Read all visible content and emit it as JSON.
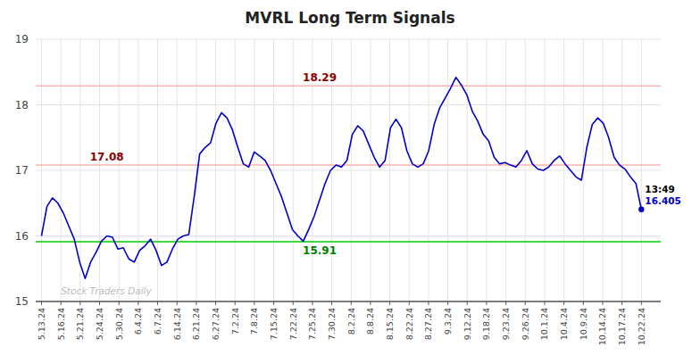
{
  "chart_data": {
    "type": "line",
    "title": "MVRL Long Term Signals",
    "color": "#0000cc",
    "marker": "last",
    "grid": true,
    "xlim": [
      -0.3,
      32
    ],
    "ylim": [
      15,
      19
    ],
    "yticks": [
      15,
      16,
      17,
      18,
      19
    ],
    "xticks": [
      {
        "value": 0,
        "label": "5.13.24"
      },
      {
        "value": 1,
        "label": "5.16.24"
      },
      {
        "value": 2,
        "label": "5.21.24"
      },
      {
        "value": 3,
        "label": "5.24.24"
      },
      {
        "value": 4,
        "label": "5.30.24"
      },
      {
        "value": 5,
        "label": "6.4.24"
      },
      {
        "value": 6,
        "label": "6.7.24"
      },
      {
        "value": 7,
        "label": "6.14.24"
      },
      {
        "value": 8,
        "label": "6.21.24"
      },
      {
        "value": 9,
        "label": "6.27.24"
      },
      {
        "value": 10,
        "label": "7.2.24"
      },
      {
        "value": 11,
        "label": "7.8.24"
      },
      {
        "value": 12,
        "label": "7.15.24"
      },
      {
        "value": 13,
        "label": "7.22.24"
      },
      {
        "value": 14,
        "label": "7.25.24"
      },
      {
        "value": 15,
        "label": "7.30.24"
      },
      {
        "value": 16,
        "label": "8.2.24"
      },
      {
        "value": 17,
        "label": "8.8.24"
      },
      {
        "value": 18,
        "label": "8.15.24"
      },
      {
        "value": 19,
        "label": "8.22.24"
      },
      {
        "value": 20,
        "label": "8.27.24"
      },
      {
        "value": 21,
        "label": "9.3.24"
      },
      {
        "value": 22,
        "label": "9.12.24"
      },
      {
        "value": 23,
        "label": "9.18.24"
      },
      {
        "value": 24,
        "label": "9.23.24"
      },
      {
        "value": 25,
        "label": "9.26.24"
      },
      {
        "value": 26,
        "label": "10.1.24"
      },
      {
        "value": 27,
        "label": "10.4.24"
      },
      {
        "value": 28,
        "label": "10.9.24"
      },
      {
        "value": 29,
        "label": "10.14.24"
      },
      {
        "value": 30,
        "label": "10.17.24"
      },
      {
        "value": 31,
        "label": "10.22.24"
      }
    ],
    "x": [
      0,
      0.2818,
      0.5636,
      0.8455,
      1.1273,
      1.4091,
      1.6909,
      1.9727,
      2.2545,
      2.5364,
      2.8182,
      3.1,
      3.3818,
      3.6636,
      3.9455,
      4.2273,
      4.5091,
      4.7909,
      5.0727,
      5.3545,
      5.6364,
      5.9182,
      6.2,
      6.4818,
      6.7636,
      7.0455,
      7.3273,
      7.6091,
      7.8909,
      8.1727,
      8.4545,
      8.7364,
      9.0182,
      9.3,
      9.5818,
      9.8636,
      10.1455,
      10.4273,
      10.7091,
      10.9909,
      11.2727,
      11.5545,
      11.8364,
      12.1182,
      12.4,
      12.6818,
      12.9636,
      13.2455,
      13.5273,
      13.8091,
      14.0909,
      14.3727,
      14.6545,
      14.9364,
      15.2182,
      15.5,
      15.7818,
      16.0636,
      16.3455,
      16.6273,
      16.9091,
      17.1909,
      17.4727,
      17.7545,
      18.0364,
      18.3182,
      18.6,
      18.8818,
      19.1636,
      19.4455,
      19.7273,
      20.0091,
      20.2909,
      20.5727,
      20.8545,
      21.1364,
      21.4182,
      21.7,
      21.9818,
      22.2636,
      22.5455,
      22.8273,
      23.1091,
      23.3909,
      23.6727,
      23.9545,
      24.2364,
      24.5182,
      24.8,
      25.0818,
      25.3636,
      25.6455,
      25.9273,
      26.2091,
      26.4909,
      26.7727,
      27.0545,
      27.3364,
      27.6182,
      27.9,
      28.1818,
      28.4636,
      28.7455,
      29.0273,
      29.3091,
      29.5909,
      29.8727,
      30.1545,
      30.4364,
      30.7182,
      31
    ],
    "values": [
      16.0,
      16.45,
      16.58,
      16.5,
      16.35,
      16.15,
      15.95,
      15.6,
      15.35,
      15.6,
      15.75,
      15.92,
      16.0,
      15.98,
      15.8,
      15.82,
      15.65,
      15.6,
      15.78,
      15.85,
      15.95,
      15.78,
      15.55,
      15.6,
      15.8,
      15.95,
      16.0,
      16.02,
      16.6,
      17.25,
      17.35,
      17.42,
      17.72,
      17.88,
      17.8,
      17.62,
      17.35,
      17.1,
      17.05,
      17.28,
      17.22,
      17.15,
      17.0,
      16.8,
      16.6,
      16.35,
      16.1,
      16.0,
      15.92,
      16.1,
      16.3,
      16.55,
      16.8,
      17.0,
      17.08,
      17.05,
      17.15,
      17.55,
      17.68,
      17.6,
      17.4,
      17.2,
      17.05,
      17.15,
      17.65,
      17.78,
      17.65,
      17.3,
      17.1,
      17.05,
      17.1,
      17.3,
      17.7,
      17.95,
      18.1,
      18.25,
      18.42,
      18.3,
      18.15,
      17.9,
      17.75,
      17.55,
      17.45,
      17.2,
      17.1,
      17.12,
      17.08,
      17.05,
      17.15,
      17.3,
      17.1,
      17.02,
      17.0,
      17.05,
      17.15,
      17.22,
      17.1,
      17.0,
      16.9,
      16.85,
      17.35,
      17.7,
      17.8,
      17.72,
      17.5,
      17.2,
      17.08,
      17.02,
      16.9,
      16.8,
      16.405
    ],
    "reference_lines": [
      {
        "value": 18.29,
        "text": "18.29",
        "line_color": "#ffb3b3",
        "color": "#8b0000"
      },
      {
        "value": 17.08,
        "text": "17.08",
        "line_color": "#ffb3b3",
        "color": "#8b0000"
      },
      {
        "value": 15.91,
        "text": "15.91",
        "line_color": "#00cc00",
        "color": "#008000"
      }
    ],
    "last_label": {
      "time": "13:49",
      "time_color": "#000000",
      "text": "16.405",
      "color": "#0000cc"
    },
    "watermark": {
      "text": "Stock Traders Daily",
      "color": "#bbbbbb"
    }
  }
}
